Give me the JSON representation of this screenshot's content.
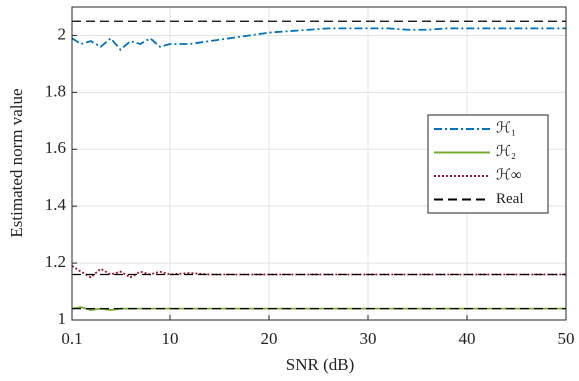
{
  "chart_data": {
    "type": "line",
    "xlabel": "SNR (dB)",
    "ylabel": "Estimated norm value",
    "x": [
      0.1,
      1,
      2,
      3,
      4,
      5,
      6,
      7,
      8,
      9,
      10,
      12,
      14,
      16,
      18,
      20,
      22,
      24,
      26,
      28,
      30,
      32,
      34,
      36,
      38,
      40,
      42,
      44,
      46,
      48,
      50
    ],
    "xlim": [
      0.1,
      50
    ],
    "xticks": [
      0.1,
      10,
      20,
      30,
      40,
      50
    ],
    "ylim": [
      1,
      2.1
    ],
    "yticks": [
      1,
      1.2,
      1.4,
      1.6,
      1.8,
      2
    ],
    "grid": true,
    "legend": "right",
    "series": [
      {
        "name": "ℋ₁",
        "color": "#0072bd",
        "linestyle": "dash-dot",
        "values": [
          1.99,
          1.97,
          1.98,
          1.96,
          1.99,
          1.95,
          1.98,
          1.97,
          1.99,
          1.96,
          1.97,
          1.97,
          1.98,
          1.99,
          2.0,
          2.01,
          2.015,
          2.02,
          2.025,
          2.025,
          2.025,
          2.025,
          2.02,
          2.02,
          2.025,
          2.025,
          2.025,
          2.025,
          2.025,
          2.025,
          2.025
        ]
      },
      {
        "name": "ℋ₂",
        "color": "#77ac30",
        "linestyle": "solid",
        "values": [
          1.04,
          1.045,
          1.035,
          1.04,
          1.035,
          1.04,
          1.04,
          1.04,
          1.04,
          1.04,
          1.04,
          1.04,
          1.04,
          1.04,
          1.04,
          1.04,
          1.04,
          1.04,
          1.04,
          1.04,
          1.04,
          1.04,
          1.04,
          1.04,
          1.04,
          1.04,
          1.04,
          1.04,
          1.04,
          1.04,
          1.04
        ]
      },
      {
        "name": "ℋ∞",
        "color": "#a2142f",
        "linestyle": "dotted",
        "values": [
          1.19,
          1.17,
          1.15,
          1.18,
          1.16,
          1.17,
          1.15,
          1.17,
          1.16,
          1.17,
          1.16,
          1.165,
          1.16,
          1.16,
          1.16,
          1.16,
          1.16,
          1.16,
          1.16,
          1.16,
          1.16,
          1.16,
          1.16,
          1.16,
          1.16,
          1.16,
          1.16,
          1.16,
          1.16,
          1.16,
          1.16
        ]
      },
      {
        "name": "Real",
        "color": "#000000",
        "linestyle": "dashed",
        "levels": [
          2.05,
          1.16,
          1.04
        ]
      }
    ]
  }
}
